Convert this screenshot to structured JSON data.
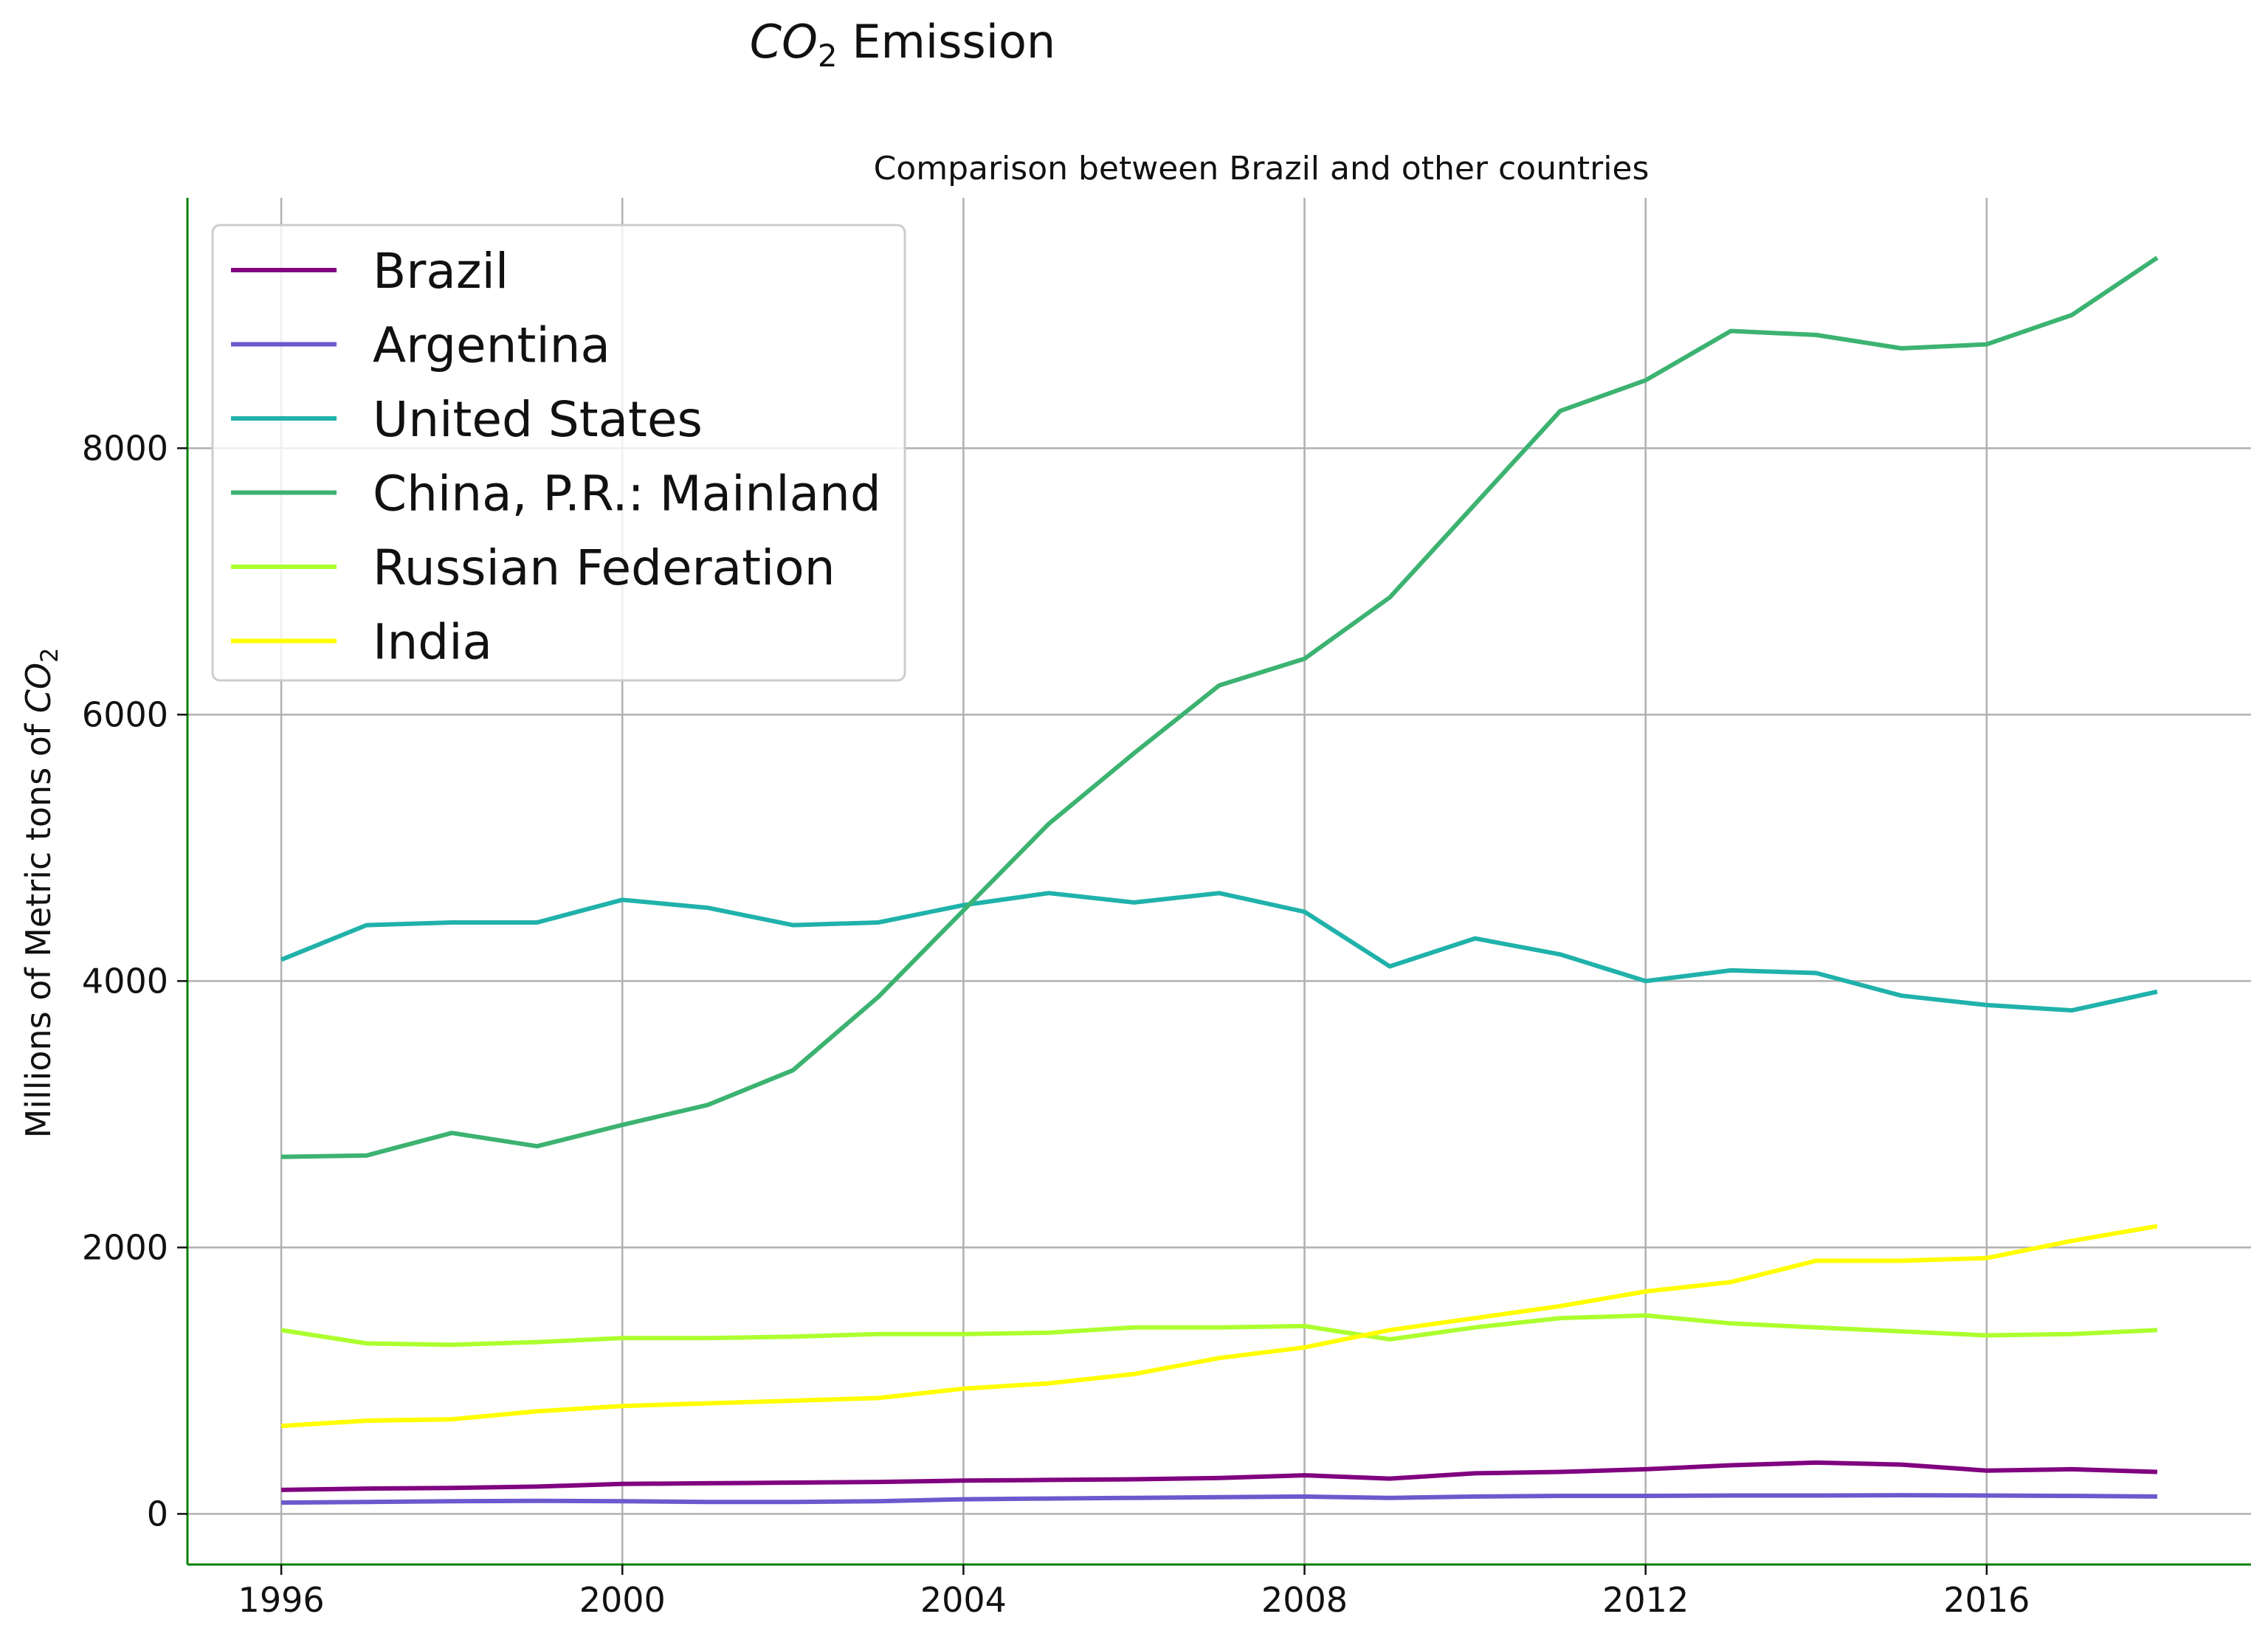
{
  "chart_data": {
    "type": "line",
    "title_prefix": "CO",
    "title_sub": "2",
    "title_suffix": " Emission",
    "subtitle": "Comparison between Brazil and other countries",
    "xlabel": "",
    "ylabel_text": "Millions of Metric tons of ",
    "ylabel_math": "CO",
    "ylabel_sub": "2",
    "xlim": [
      1994.9,
      2019.1
    ],
    "ylim": [
      -380,
      9880
    ],
    "xticks": [
      1996,
      2000,
      2004,
      2008,
      2012,
      2016
    ],
    "yticks": [
      0,
      2000,
      4000,
      6000,
      8000
    ],
    "grid": true,
    "legend_position": "upper-left",
    "x": [
      1996,
      1997,
      1998,
      1999,
      2000,
      2001,
      2002,
      2003,
      2004,
      2005,
      2006,
      2007,
      2008,
      2009,
      2010,
      2011,
      2012,
      2013,
      2014,
      2015,
      2016,
      2017,
      2018
    ],
    "series": [
      {
        "name": "Brazil",
        "color": "#800080",
        "values": [
          180,
          190,
          195,
          205,
          225,
          230,
          235,
          240,
          250,
          255,
          260,
          270,
          290,
          265,
          305,
          315,
          335,
          365,
          385,
          370,
          325,
          335,
          315
        ]
      },
      {
        "name": "Argentina",
        "color": "#6a5acd",
        "values": [
          85,
          90,
          95,
          98,
          95,
          90,
          90,
          95,
          110,
          115,
          120,
          125,
          130,
          120,
          130,
          135,
          135,
          138,
          138,
          140,
          138,
          135,
          130
        ]
      },
      {
        "name": "United States",
        "color": "#20b2aa",
        "values": [
          4160,
          4420,
          4440,
          4440,
          4610,
          4550,
          4420,
          4440,
          4570,
          4660,
          4590,
          4660,
          4520,
          4110,
          4320,
          4200,
          4000,
          4080,
          4060,
          3890,
          3820,
          3780,
          3920
        ]
      },
      {
        "name": "China, P.R.: Mainland",
        "color": "#3cb371",
        "values": [
          2680,
          2690,
          2860,
          2760,
          2920,
          3070,
          3330,
          3880,
          4530,
          5180,
          5710,
          6220,
          6420,
          6880,
          7580,
          8280,
          8510,
          8880,
          8850,
          8750,
          8780,
          9000,
          9430
        ]
      },
      {
        "name": "Russian Federation",
        "color": "#adff2f",
        "values": [
          1380,
          1280,
          1270,
          1290,
          1320,
          1320,
          1330,
          1350,
          1350,
          1360,
          1400,
          1400,
          1410,
          1310,
          1400,
          1470,
          1490,
          1430,
          1400,
          1370,
          1340,
          1350,
          1380
        ]
      },
      {
        "name": "India",
        "color": "#ffff00",
        "values": [
          660,
          700,
          710,
          770,
          810,
          830,
          850,
          870,
          940,
          980,
          1050,
          1170,
          1250,
          1380,
          1470,
          1560,
          1670,
          1740,
          1900,
          1900,
          1920,
          2050,
          2160
        ]
      }
    ]
  }
}
